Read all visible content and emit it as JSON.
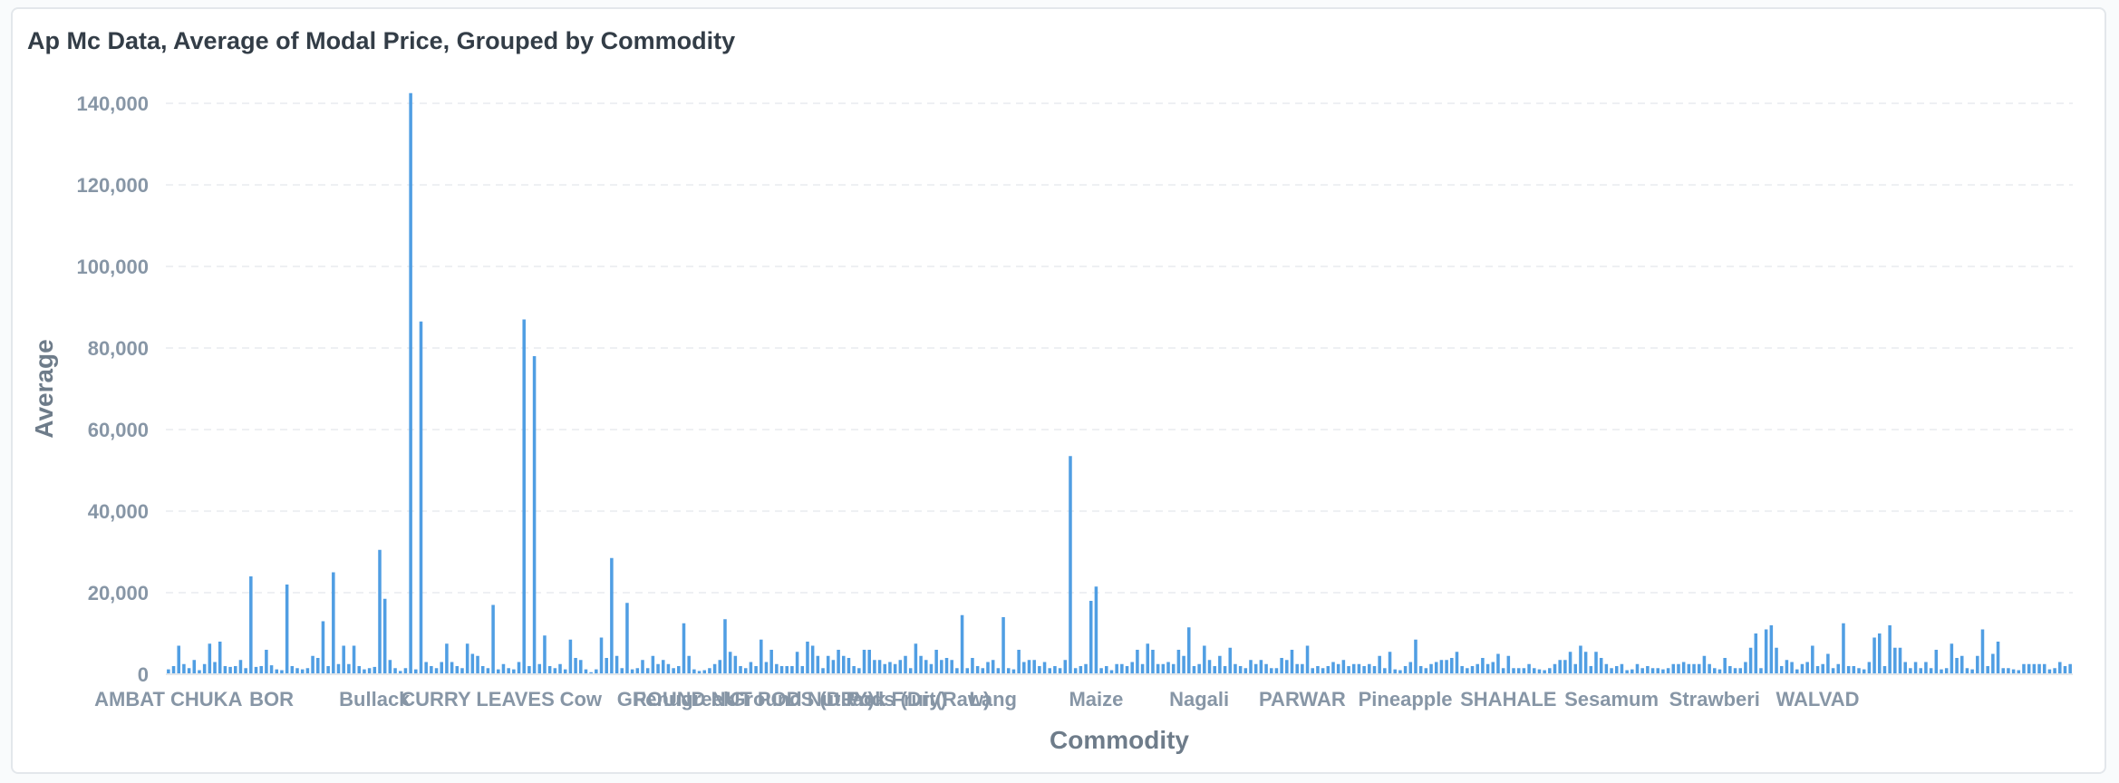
{
  "chart_data": {
    "type": "bar",
    "title": "Ap Mc Data, Average of Modal Price, Grouped by Commodity",
    "xlabel": "Commodity",
    "ylabel": "Average",
    "ylim": [
      0,
      140000
    ],
    "y_ticks": [
      "0",
      "20,000",
      "40,000",
      "60,000",
      "80,000",
      "100,000",
      "120,000",
      "140,000"
    ],
    "y_tick_values": [
      0,
      20000,
      40000,
      60000,
      80000,
      100000,
      120000,
      140000
    ],
    "grid": true,
    "legend": "none",
    "color": "#509ee3",
    "visible_category_labels": [
      {
        "label": "AMBAT CHUKA",
        "index": 0
      },
      {
        "label": "BOR",
        "index": 20
      },
      {
        "label": "Bullack",
        "index": 40
      },
      {
        "label": "CURRY LEAVES",
        "index": 60
      },
      {
        "label": "Cow",
        "index": 80
      },
      {
        "label": "Fenugreek",
        "index": 100
      },
      {
        "label": "GROUND NUT PODS (DRY)",
        "index": 112
      },
      {
        "label": "Ground Nut Pods (Dry)",
        "index": 130
      },
      {
        "label": "Jack Fruit(Raw)",
        "index": 145
      },
      {
        "label": "Lang",
        "index": 160
      },
      {
        "label": "Maize",
        "index": 180
      },
      {
        "label": "Nagali",
        "index": 200
      },
      {
        "label": "PARWAR",
        "index": 220
      },
      {
        "label": "Pineapple",
        "index": 240
      },
      {
        "label": "SHAHALE",
        "index": 260
      },
      {
        "label": "Sesamum",
        "index": 280
      },
      {
        "label": "Strawberi",
        "index": 300
      },
      {
        "label": "WALVAD",
        "index": 320
      }
    ],
    "values": [
      1200,
      2000,
      7000,
      2500,
      1500,
      3500,
      1000,
      2500,
      7500,
      3000,
      8000,
      2000,
      1800,
      2000,
      3500,
      1500,
      24000,
      1800,
      2000,
      6000,
      2200,
      1200,
      1000,
      22000,
      2000,
      1500,
      1200,
      1500,
      4500,
      4000,
      13000,
      2000,
      25000,
      2500,
      7000,
      2500,
      7000,
      2000,
      1200,
      1500,
      1800,
      30500,
      18500,
      3500,
      1500,
      800,
      1500,
      142500,
      1200,
      86500,
      3000,
      2000,
      1500,
      3000,
      7500,
      3000,
      2000,
      1500,
      7500,
      5000,
      4500,
      2000,
      1500,
      17000,
      1200,
      2500,
      1500,
      1200,
      3000,
      87000,
      2000,
      78000,
      2500,
      9500,
      2000,
      1500,
      2500,
      1200,
      8500,
      4000,
      3500,
      1200,
      500,
      1200,
      9000,
      4000,
      28500,
      4500,
      1500,
      17500,
      1200,
      1500,
      3500,
      1500,
      4500,
      2500,
      3500,
      2500,
      1500,
      2000,
      12500,
      4500,
      1200,
      800,
      1000,
      1500,
      2500,
      3500,
      13500,
      5500,
      4500,
      2000,
      1500,
      3000,
      2000,
      8500,
      3000,
      6000,
      2500,
      2000,
      2000,
      2000,
      5500,
      2000,
      8000,
      7000,
      4500,
      1500,
      4500,
      3500,
      6000,
      4500,
      4000,
      2000,
      1500,
      6000,
      6000,
      3500,
      3500,
      2500,
      3000,
      2500,
      3500,
      4500,
      1500,
      7500,
      4500,
      3500,
      2500,
      6000,
      3500,
      4000,
      3500,
      1500,
      14500,
      1500,
      4000,
      2000,
      1500,
      3000,
      3500,
      1500,
      14000,
      1500,
      1200,
      6000,
      3000,
      3500,
      3500,
      2000,
      3000,
      1500,
      2000,
      1500,
      3500,
      53500,
      1500,
      2000,
      2500,
      18000,
      21500,
      1500,
      2000,
      1000,
      2500,
      2500,
      2000,
      3000,
      6000,
      2500,
      7500,
      6000,
      2500,
      2500,
      3000,
      2500,
      6000,
      4500,
      11500,
      2000,
      2500,
      7000,
      3500,
      2000,
      4500,
      2000,
      6500,
      2500,
      2000,
      1500,
      3500,
      2500,
      3500,
      2500,
      1500,
      1500,
      4000,
      3500,
      6000,
      2500,
      2500,
      7000,
      1500,
      2000,
      1500,
      2000,
      3000,
      2500,
      3500,
      2000,
      2500,
      2500,
      2000,
      2500,
      2000,
      4500,
      1500,
      5500,
      1200,
      1000,
      2000,
      3000,
      8500,
      2000,
      1500,
      2500,
      3000,
      3500,
      3500,
      4000,
      5500,
      2000,
      1500,
      2000,
      2500,
      4000,
      2500,
      3000,
      5000,
      1500,
      4500,
      1500,
      1500,
      1500,
      2500,
      1500,
      1200,
      1000,
      1500,
      2500,
      3500,
      3500,
      5500,
      2500,
      7000,
      5500,
      2000,
      5500,
      4000,
      2500,
      1500,
      2000,
      2500,
      1000,
      1200,
      2500,
      1500,
      2000,
      1500,
      1500,
      1200,
      1500,
      2500,
      2500,
      3000,
      2500,
      2500,
      2500,
      4500,
      2500,
      1500,
      1200,
      4000,
      2000,
      1500,
      1500,
      3000,
      6500,
      10000,
      1500,
      11000,
      12000,
      6500,
      2000,
      3500,
      3000,
      1200,
      2500,
      3000,
      7000,
      2000,
      2500,
      5000,
      1500,
      2500,
      12500,
      2000,
      2000,
      1500,
      1200,
      3000,
      9000,
      10000,
      2000,
      12000,
      6500,
      6500,
      3000,
      1500,
      3000,
      1500,
      3000,
      1500,
      6000,
      1200,
      1500,
      7500,
      4000,
      4500,
      1500,
      1200,
      4500,
      11000,
      2000,
      5000,
      8000,
      1500,
      1500,
      1200,
      1000,
      2500,
      2500,
      2500,
      2500,
      2500,
      1200,
      1500,
      3000,
      2000,
      2500
    ]
  }
}
